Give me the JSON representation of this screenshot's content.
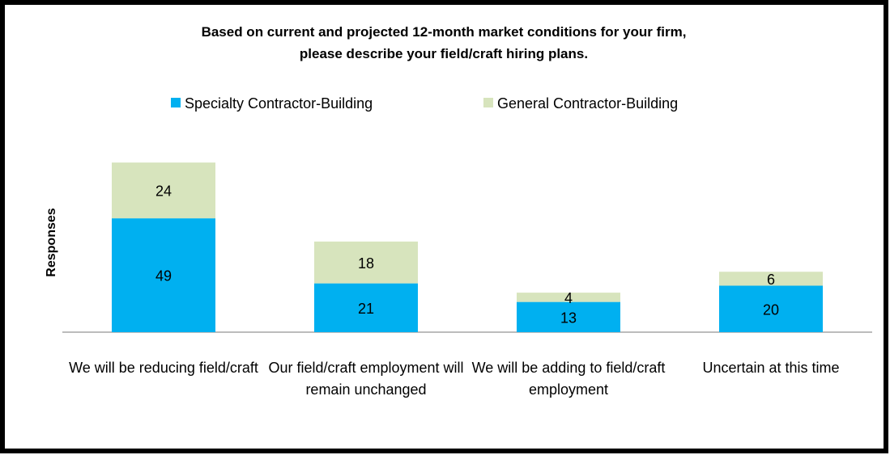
{
  "chart_data": {
    "type": "stacked_bar",
    "title": [
      "Based on current and projected 12-month market conditions for your firm,",
      "please describe your field/craft hiring plans."
    ],
    "y_label": "Responses",
    "categories": [
      "We will be reducing field/craft",
      "Our field/craft employment will remain unchanged",
      "We will be adding to field/craft employment",
      "Uncertain at this time"
    ],
    "series": [
      {
        "name": "Specialty Contractor-Building",
        "color": "#00b0f0",
        "values": [
          49,
          21,
          13,
          20
        ]
      },
      {
        "name": "General Contractor-Building",
        "color": "#d7e4bd",
        "values": [
          24,
          18,
          4,
          6
        ]
      }
    ],
    "ylim": [
      0,
      80
    ],
    "legend": "top"
  }
}
